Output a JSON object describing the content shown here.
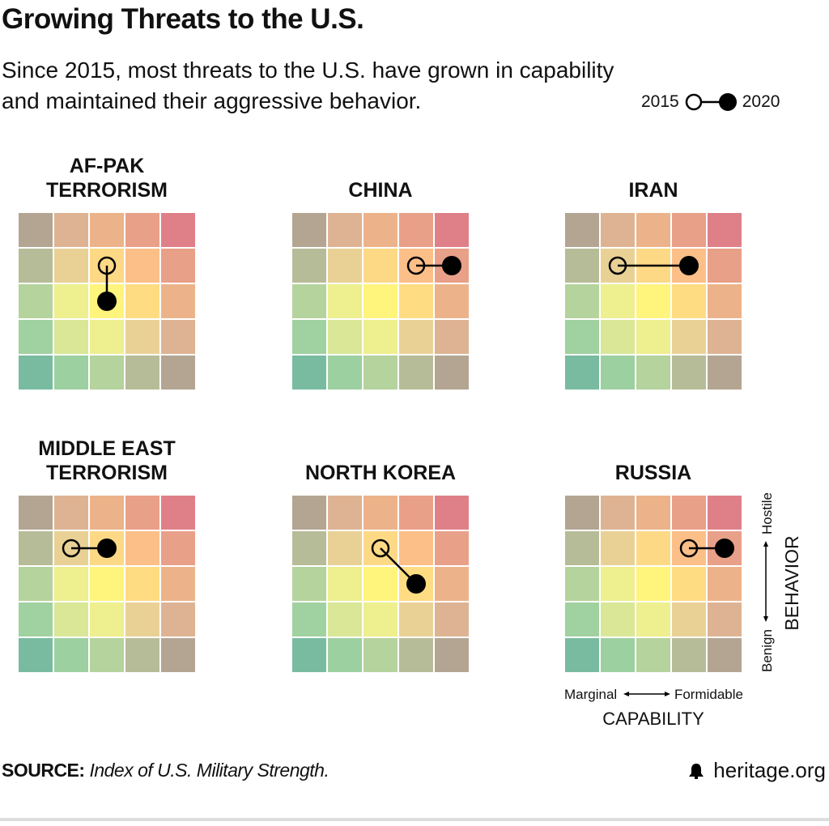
{
  "header": {
    "title": "Growing Threats to the U.S.",
    "subtitle": "Since 2015, most threats to the U.S. have grown in capability and maintained their aggressive behavior."
  },
  "legend": {
    "start_label": "2015",
    "end_label": "2020"
  },
  "footer": {
    "source_label": "SOURCE:",
    "source_text": "Index of U.S. Military Strength.",
    "brand": "heritage.org"
  },
  "chart_data": {
    "type": "heatmap",
    "xlabel": "CAPABILITY",
    "x_range_labels": [
      "Marginal",
      "Formidable"
    ],
    "ylabel": "BEHAVIOR",
    "y_range_labels": [
      "Benign",
      "Hostile"
    ],
    "scale": "5x5 grid; capability 1 (Marginal) to 5 (Formidable), behavior 1 (Benign) to 5 (Hostile)",
    "cell_colors": [
      [
        "#b3a592",
        "#deb393",
        "#ecb38a",
        "#e9a088",
        "#df8088"
      ],
      [
        "#b7bc98",
        "#e9d196",
        "#fdd986",
        "#fcbf88",
        "#e9a088"
      ],
      [
        "#b5d39d",
        "#eeef8e",
        "#fff47c",
        "#fedc82",
        "#ecb38a"
      ],
      [
        "#a0d1a0",
        "#d9e796",
        "#eeef8e",
        "#e9d196",
        "#deb393"
      ],
      [
        "#78bba0",
        "#9dd0a0",
        "#b5d39d",
        "#b7bc98",
        "#b3a592"
      ]
    ],
    "panels": [
      {
        "name": "AF-PAK TERRORISM",
        "title_lines": [
          "AF-PAK",
          "TERRORISM"
        ],
        "y2015": {
          "capability": 3,
          "behavior": 4
        },
        "y2020": {
          "capability": 3,
          "behavior": 3
        }
      },
      {
        "name": "CHINA",
        "title_lines": [
          "CHINA"
        ],
        "y2015": {
          "capability": 4,
          "behavior": 4
        },
        "y2020": {
          "capability": 5,
          "behavior": 4
        }
      },
      {
        "name": "IRAN",
        "title_lines": [
          "IRAN"
        ],
        "y2015": {
          "capability": 2,
          "behavior": 4
        },
        "y2020": {
          "capability": 4,
          "behavior": 4
        }
      },
      {
        "name": "MIDDLE EAST TERRORISM",
        "title_lines": [
          "MIDDLE EAST",
          "TERRORISM"
        ],
        "y2015": {
          "capability": 2,
          "behavior": 4
        },
        "y2020": {
          "capability": 3,
          "behavior": 4
        }
      },
      {
        "name": "NORTH KOREA",
        "title_lines": [
          "NORTH KOREA"
        ],
        "y2015": {
          "capability": 3,
          "behavior": 4
        },
        "y2020": {
          "capability": 4,
          "behavior": 3
        }
      },
      {
        "name": "RUSSIA",
        "title_lines": [
          "RUSSIA"
        ],
        "y2015": {
          "capability": 4,
          "behavior": 4
        },
        "y2020": {
          "capability": 5,
          "behavior": 4
        }
      }
    ]
  }
}
